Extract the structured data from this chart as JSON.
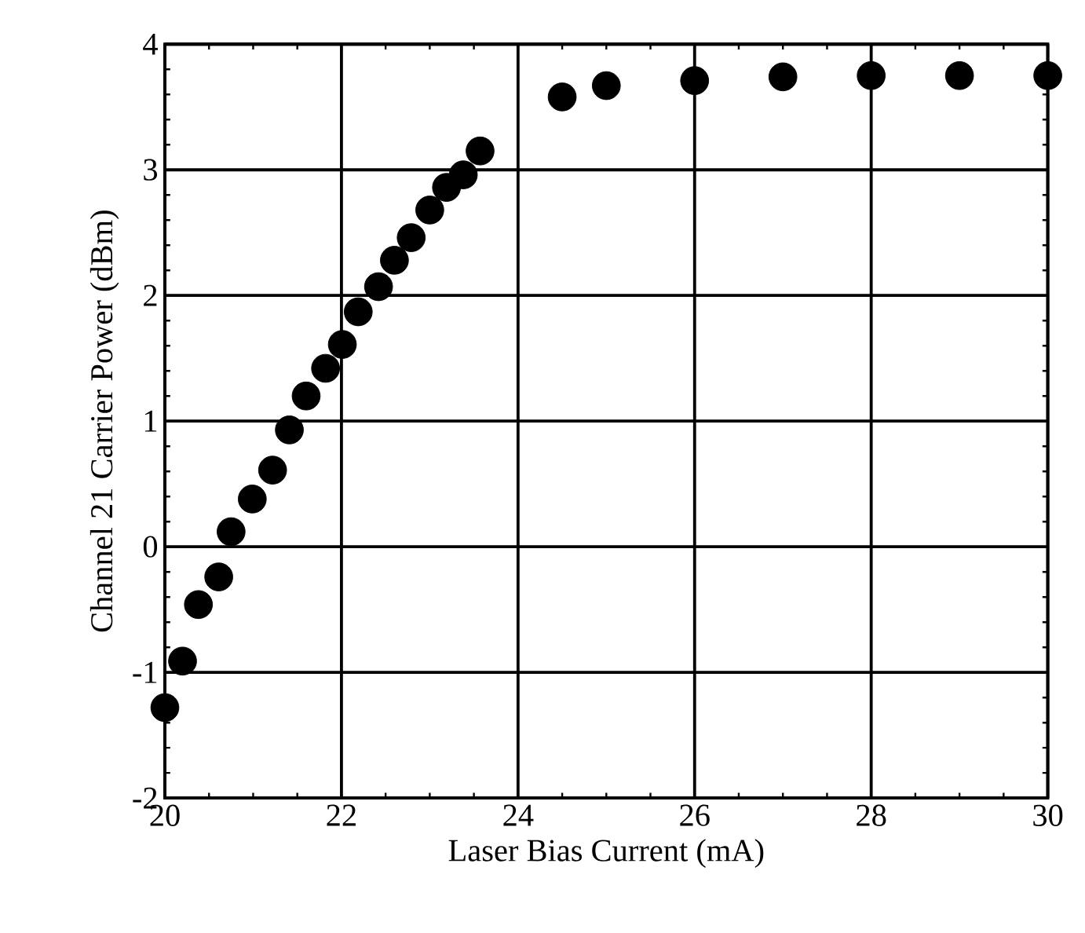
{
  "chart_data": {
    "type": "scatter",
    "xlabel": "Laser Bias Current (mA)",
    "ylabel": "Channel 21 Carrier Power (dBm)",
    "xlim": [
      20,
      30
    ],
    "ylim": [
      -2,
      4
    ],
    "xticks": [
      20,
      22,
      24,
      26,
      28,
      30
    ],
    "yticks": [
      -2,
      -1,
      0,
      1,
      2,
      3,
      4
    ],
    "grid": true,
    "marker": "circle",
    "series": [
      {
        "color": "#000000",
        "x": [
          20.0,
          20.2,
          20.38,
          20.61,
          20.75,
          20.99,
          21.22,
          21.41,
          21.6,
          21.82,
          22.01,
          22.19,
          22.42,
          22.6,
          22.79,
          23.0,
          23.19,
          23.38,
          23.57,
          24.5,
          25.0,
          26,
          27,
          28,
          29,
          30
        ],
        "values": [
          -1.28,
          -0.91,
          -0.46,
          -0.24,
          0.12,
          0.38,
          0.61,
          0.93,
          1.2,
          1.42,
          1.61,
          1.87,
          2.07,
          2.28,
          2.46,
          2.68,
          2.86,
          2.96,
          3.15,
          3.58,
          3.67,
          3.71,
          3.74,
          3.75,
          3.75,
          3.75
        ]
      }
    ]
  }
}
